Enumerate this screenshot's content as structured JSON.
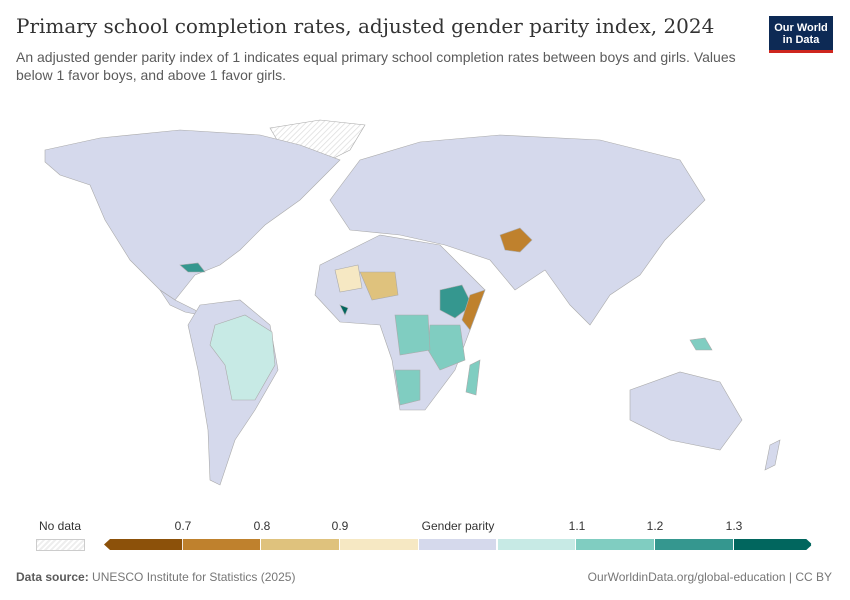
{
  "header": {
    "title": "Primary school completion rates, adjusted gender parity index, 2024",
    "subtitle": "An adjusted gender parity index of 1 indicates equal primary school completion rates between boys and girls. Values below 1 favor boys, and above 1 favor girls.",
    "logo": "Our World in Data"
  },
  "legend": {
    "no_data": "No data",
    "center_label": "Gender parity",
    "ticks": [
      "0.7",
      "0.8",
      "0.9",
      "1.1",
      "1.2",
      "1.3"
    ],
    "bins": [
      {
        "range": "<0.7",
        "color": "#8c510a"
      },
      {
        "range": "0.7-0.8",
        "color": "#bf812d"
      },
      {
        "range": "0.8-0.9",
        "color": "#dfc27d"
      },
      {
        "range": "0.9-1",
        "color": "#f6e8c3"
      },
      {
        "range": "1-1.05",
        "color": "#d5d9ec"
      },
      {
        "range": "1.05-1.1",
        "color": "#c7eae5"
      },
      {
        "range": "1.1-1.2",
        "color": "#80cdc1"
      },
      {
        "range": "1.2-1.3",
        "color": "#35978f"
      },
      {
        "range": ">1.3",
        "color": "#01665e"
      }
    ]
  },
  "footer": {
    "source_label": "Data source:",
    "source": "UNESCO Institute for Statistics (2025)",
    "url": "OurWorldinData.org/global-education | CC BY"
  }
}
